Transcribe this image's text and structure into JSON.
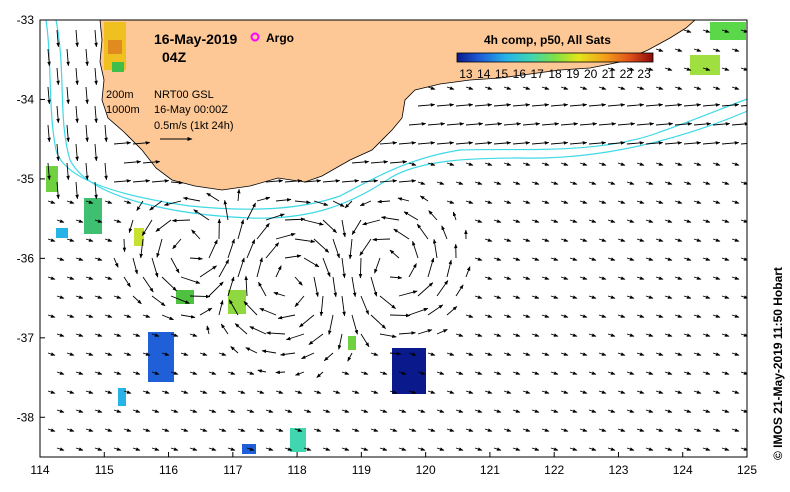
{
  "map": {
    "title_date": "16-May-2019",
    "title_time": "04Z",
    "legend_argo_label": "Argo",
    "argo_color": "#ff00ff",
    "contour_200_label": "200m",
    "contour_1000_label": "1000m",
    "product_label": "NRT00 GSL",
    "product_time": "16-May 00:00Z",
    "scale_label": "0.5m/s (1kt 24h)",
    "colorbar_title": "4h comp, p50, All Sats",
    "colorbar_ticks": [
      "13",
      "14",
      "15",
      "16",
      "17",
      "18",
      "19",
      "20",
      "21",
      "22",
      "23"
    ],
    "credit": "© IMOS 21-May-2019 11:50 Hobart",
    "land_color": "#fdc896",
    "bathymetry_color": "#3fd8e6"
  },
  "axes": {
    "x_ticks": [
      "114",
      "115",
      "116",
      "117",
      "118",
      "119",
      "120",
      "121",
      "122",
      "123",
      "124",
      "125"
    ],
    "y_ticks": [
      "-33",
      "-34",
      "-35",
      "-36",
      "-37",
      "-38"
    ],
    "lon_range": [
      114,
      125
    ],
    "lat_range": [
      -38.5,
      -33
    ]
  }
}
